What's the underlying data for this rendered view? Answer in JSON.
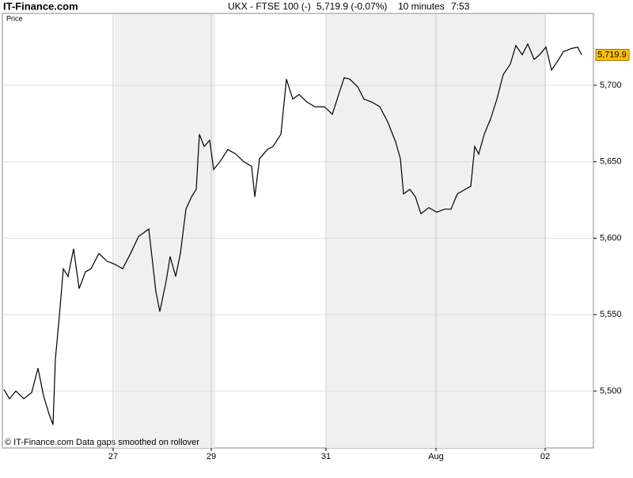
{
  "site": "IT-Finance.com",
  "header": {
    "symbol": "UKX - FTSE 100 (-)",
    "quote": "5,719.9 (-0.07%)",
    "interval": "10 minutes",
    "time": "7:53"
  },
  "footer": "© IT-Finance.com  Data gaps smoothed on rollover",
  "chart_data": {
    "type": "line",
    "y_label": "Price",
    "x": [
      2,
      9,
      17,
      27,
      37,
      45,
      52,
      59,
      64,
      67,
      72,
      77,
      83,
      90,
      97,
      105,
      112,
      122,
      132,
      142,
      152,
      162,
      172,
      185,
      189,
      194,
      199,
      207,
      212,
      219,
      225,
      232,
      239,
      245,
      249,
      255,
      262,
      267,
      275,
      285,
      295,
      305,
      315,
      319,
      325,
      335,
      342,
      352,
      359,
      367,
      375,
      385,
      395,
      407,
      417,
      425,
      432,
      439,
      449,
      457,
      467,
      477,
      487,
      497,
      503,
      507,
      515,
      522,
      529,
      539,
      549,
      559,
      567,
      575,
      585,
      592,
      597,
      602,
      609,
      617,
      625,
      633,
      642,
      649,
      657,
      664,
      672,
      679,
      687,
      694,
      702,
      709,
      719,
      727,
      732
    ],
    "series": [
      {
        "name": "UKX",
        "color": "#000000",
        "values": [
          5501,
          5495,
          5500,
          5495,
          5499,
          5515,
          5497,
          5485,
          5478,
          5521,
          5549,
          5580,
          5575,
          5593,
          5567,
          5578,
          5580,
          5590,
          5585,
          5583,
          5580,
          5590,
          5601,
          5606,
          5588,
          5565,
          5552,
          5572,
          5588,
          5575,
          5590,
          5619,
          5627,
          5632,
          5668,
          5660,
          5664,
          5645,
          5650,
          5658,
          5655,
          5650,
          5647,
          5627,
          5652,
          5658,
          5660,
          5668,
          5704,
          5691,
          5694,
          5689,
          5686,
          5686,
          5681,
          5694,
          5705,
          5704,
          5699,
          5691,
          5689,
          5686,
          5676,
          5663,
          5652,
          5629,
          5632,
          5627,
          5616,
          5620,
          5617,
          5619,
          5619,
          5629,
          5632,
          5634,
          5660,
          5655,
          5668,
          5678,
          5691,
          5707,
          5714,
          5726,
          5720,
          5727,
          5717,
          5720,
          5725,
          5710,
          5716,
          5722,
          5724,
          5725,
          5719.9
        ]
      }
    ],
    "last_label": "5,719.9",
    "xlim": [
      0,
      747
    ],
    "ylim": [
      5462.8,
      5747
    ],
    "xticks": [
      {
        "value": 140,
        "label": "27"
      },
      {
        "value": 264,
        "label": "29"
      },
      {
        "value": 409,
        "label": "31"
      },
      {
        "value": 548,
        "label": "Aug"
      },
      {
        "value": 686,
        "label": "02"
      }
    ],
    "yticks": [
      {
        "value": 5500,
        "label": "5,500"
      },
      {
        "value": 5550,
        "label": "5,550"
      },
      {
        "value": 5600,
        "label": "5,600"
      },
      {
        "value": 5650,
        "label": "5,650"
      },
      {
        "value": 5700,
        "label": "5,700"
      }
    ],
    "shaded_x": [
      [
        142,
        269
      ],
      [
        410,
        687
      ]
    ],
    "grid": true,
    "y_axis_side": "right"
  }
}
